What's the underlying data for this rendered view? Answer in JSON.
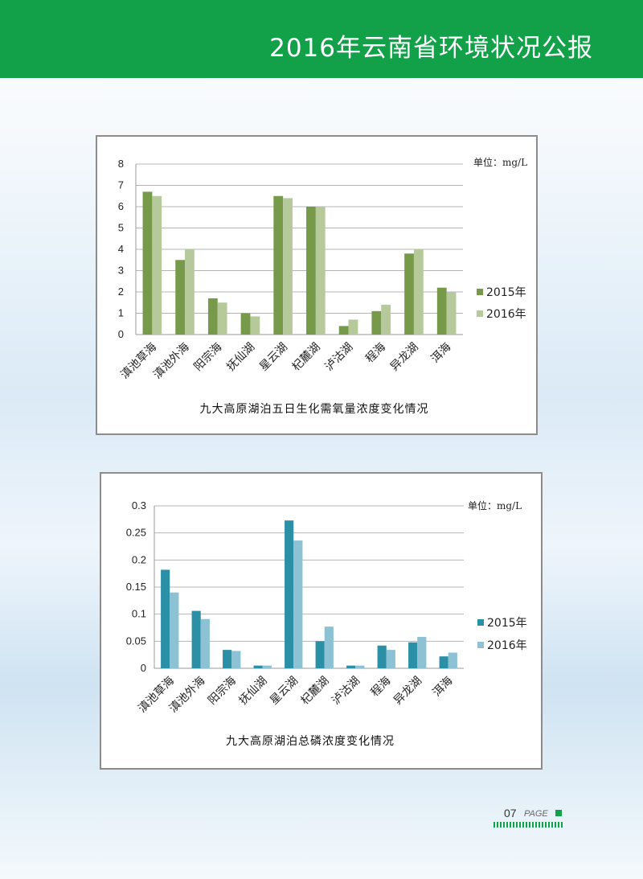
{
  "header": {
    "title": "2016年云南省环境状况公报"
  },
  "page": {
    "number": "07",
    "label": "PAGE"
  },
  "chart_data": [
    {
      "type": "bar",
      "title": "九大高原湖泊五日生化需氧量浓度变化情况",
      "unit_label": "单位：mg/L",
      "categories": [
        "滇池草海",
        "滇池外海",
        "阳宗海",
        "抚仙湖",
        "星云湖",
        "杞麓湖",
        "泸沽湖",
        "程海",
        "异龙湖",
        "洱海"
      ],
      "series": [
        {
          "name": "2015年",
          "color": "#76994a",
          "values": [
            6.7,
            3.5,
            1.7,
            1.0,
            6.5,
            6.0,
            0.4,
            1.1,
            3.8,
            2.2
          ]
        },
        {
          "name": "2016年",
          "color": "#b5c99a",
          "values": [
            6.5,
            4.0,
            1.5,
            0.85,
            6.4,
            6.0,
            0.7,
            1.4,
            4.0,
            2.0
          ]
        }
      ],
      "y_ticks": [
        "0",
        "1",
        "2",
        "3",
        "4",
        "5",
        "6",
        "7",
        "8"
      ],
      "ylim": [
        0,
        8
      ],
      "grid": true,
      "legend_position": "right"
    },
    {
      "type": "bar",
      "title": "九大高原湖泊总磷浓度变化情况",
      "unit_label": "单位：mg/L",
      "categories": [
        "滇池草海",
        "滇池外海",
        "阳宗海",
        "抚仙湖",
        "星云湖",
        "杞麓湖",
        "泸沽湖",
        "程海",
        "异龙湖",
        "洱海"
      ],
      "series": [
        {
          "name": "2015年",
          "color": "#2b8fa6",
          "values": [
            0.182,
            0.106,
            0.034,
            0.005,
            0.273,
            0.05,
            0.005,
            0.042,
            0.048,
            0.022
          ]
        },
        {
          "name": "2016年",
          "color": "#8cc2d3",
          "values": [
            0.14,
            0.091,
            0.032,
            0.005,
            0.236,
            0.077,
            0.005,
            0.034,
            0.058,
            0.029
          ]
        }
      ],
      "y_ticks": [
        "0",
        "0.05",
        "0.1",
        "0.15",
        "0.2",
        "0.25",
        "0.3"
      ],
      "ylim": [
        0,
        0.3
      ],
      "grid": true,
      "legend_position": "right"
    }
  ]
}
